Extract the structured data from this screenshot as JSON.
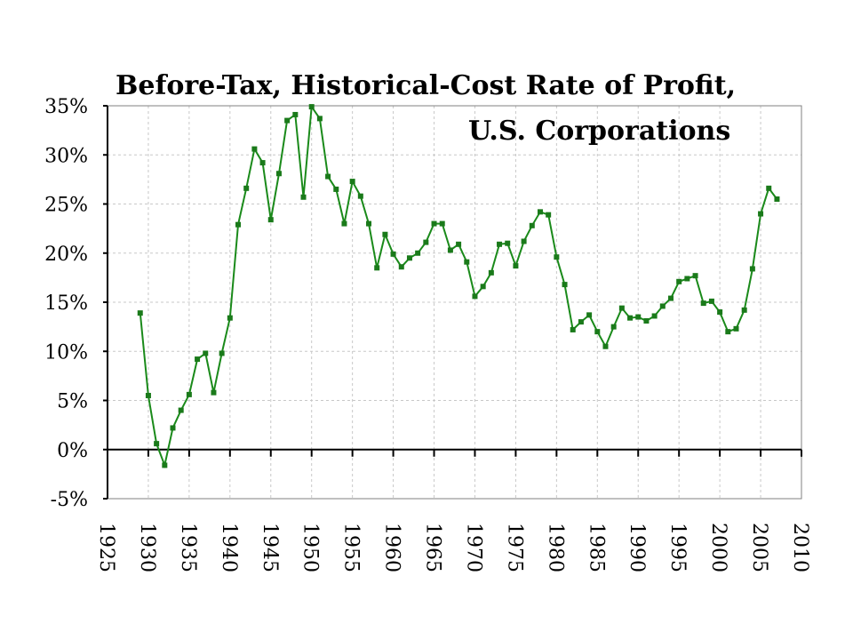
{
  "chart_data": {
    "type": "line",
    "title": "Before-Tax, Historical-Cost Rate of Profit,",
    "subtitle": "U.S. Corporations",
    "xlabel": "",
    "ylabel": "",
    "xlim": [
      1925,
      2010
    ],
    "ylim": [
      -5,
      35
    ],
    "x_ticks": [
      "1925",
      "1930",
      "1935",
      "1940",
      "1945",
      "1950",
      "1955",
      "1960",
      "1965",
      "1970",
      "1975",
      "1980",
      "1985",
      "1990",
      "1995",
      "2000",
      "2005",
      "2010"
    ],
    "y_ticks": [
      "35%",
      "30%",
      "25%",
      "20%",
      "15%",
      "10%",
      "5%",
      "0%",
      "-5%"
    ],
    "y_tick_values": [
      35,
      30,
      25,
      20,
      15,
      10,
      5,
      0,
      -5
    ],
    "grid": true,
    "series_color": "#1a8a1a",
    "x": [
      1929,
      1930,
      1931,
      1932,
      1933,
      1934,
      1935,
      1936,
      1937,
      1938,
      1939,
      1940,
      1941,
      1942,
      1943,
      1944,
      1945,
      1946,
      1947,
      1948,
      1949,
      1950,
      1951,
      1952,
      1953,
      1954,
      1955,
      1956,
      1957,
      1958,
      1959,
      1960,
      1961,
      1962,
      1963,
      1964,
      1965,
      1966,
      1967,
      1968,
      1969,
      1970,
      1971,
      1972,
      1973,
      1974,
      1975,
      1976,
      1977,
      1978,
      1979,
      1980,
      1981,
      1982,
      1983,
      1984,
      1985,
      1986,
      1987,
      1988,
      1989,
      1990,
      1991,
      1992,
      1993,
      1994,
      1995,
      1996,
      1997,
      1998,
      1999,
      2000,
      2001,
      2002,
      2003,
      2004,
      2005,
      2006,
      2007
    ],
    "y": [
      13.9,
      5.5,
      0.6,
      -1.6,
      2.2,
      4.0,
      5.6,
      9.2,
      9.8,
      5.8,
      9.8,
      13.4,
      22.9,
      26.6,
      30.6,
      29.2,
      23.4,
      28.1,
      33.5,
      34.1,
      25.7,
      34.9,
      33.7,
      27.8,
      26.5,
      23.0,
      27.3,
      25.8,
      23.0,
      18.5,
      21.9,
      19.9,
      18.6,
      19.5,
      20.0,
      21.1,
      23.0,
      23.0,
      20.3,
      20.9,
      19.1,
      15.6,
      16.6,
      18.0,
      20.9,
      21.0,
      18.7,
      21.2,
      22.8,
      24.2,
      23.9,
      19.6,
      16.8,
      12.2,
      13.0,
      13.7,
      12.0,
      10.5,
      12.5,
      14.4,
      13.4,
      13.5,
      13.1,
      13.6,
      14.6,
      15.4,
      17.1,
      17.4,
      17.7,
      14.9,
      15.1,
      14.0,
      12.0,
      12.3,
      14.2,
      18.4,
      24.0,
      26.6,
      25.5
    ]
  }
}
